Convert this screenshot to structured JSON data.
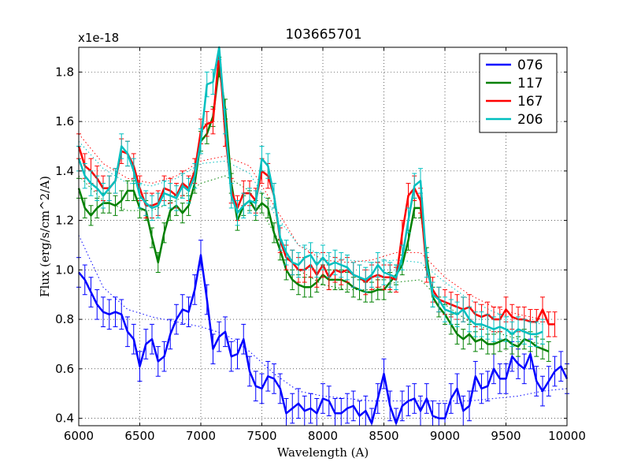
{
  "chart_data": {
    "type": "line",
    "title": "103665701",
    "xlabel": "Wavelength (A)",
    "ylabel": "Flux (erg/s/cm^2/A)",
    "y_multiplier": "x1e-18",
    "xlim": [
      6000,
      10000
    ],
    "ylim": [
      0.37,
      1.9
    ],
    "xticks": [
      6000,
      6500,
      7000,
      7500,
      8000,
      8500,
      9000,
      9500,
      10000
    ],
    "yticks": [
      0.4,
      0.6,
      0.8,
      1.0,
      1.2,
      1.4,
      1.6,
      1.8
    ],
    "ytick_labels": [
      "0.4",
      "0.6",
      "0.8",
      "1.0",
      "1.2",
      "1.4",
      "1.6",
      "1.8"
    ],
    "grid": true,
    "legend_position": "top-right",
    "series": [
      {
        "name": "076",
        "color": "#0000ff",
        "error": 0.06,
        "x": [
          6000,
          6050,
          6100,
          6150,
          6200,
          6250,
          6300,
          6350,
          6400,
          6450,
          6500,
          6550,
          6600,
          6650,
          6700,
          6750,
          6800,
          6850,
          6900,
          6950,
          7000,
          7050,
          7100,
          7150,
          7200,
          7250,
          7300,
          7350,
          7400,
          7450,
          7500,
          7550,
          7600,
          7650,
          7700,
          7750,
          7800,
          7850,
          7900,
          7950,
          8000,
          8050,
          8100,
          8150,
          8200,
          8250,
          8300,
          8350,
          8400,
          8450,
          8500,
          8550,
          8600,
          8650,
          8700,
          8750,
          8800,
          8850,
          8900,
          8950,
          9000,
          9050,
          9100,
          9150,
          9200,
          9250,
          9300,
          9350,
          9400,
          9450,
          9500,
          9550,
          9600,
          9650,
          9700,
          9750,
          9800,
          9850,
          9900,
          9950,
          10000
        ],
        "values": [
          0.99,
          0.96,
          0.91,
          0.86,
          0.83,
          0.82,
          0.83,
          0.82,
          0.75,
          0.72,
          0.61,
          0.7,
          0.72,
          0.63,
          0.65,
          0.74,
          0.8,
          0.84,
          0.83,
          0.92,
          1.06,
          0.88,
          0.68,
          0.73,
          0.75,
          0.65,
          0.66,
          0.72,
          0.59,
          0.53,
          0.52,
          0.57,
          0.56,
          0.52,
          0.42,
          0.44,
          0.46,
          0.43,
          0.44,
          0.42,
          0.48,
          0.47,
          0.42,
          0.42,
          0.44,
          0.45,
          0.41,
          0.43,
          0.38,
          0.48,
          0.58,
          0.45,
          0.38,
          0.45,
          0.47,
          0.48,
          0.43,
          0.48,
          0.41,
          0.4,
          0.4,
          0.48,
          0.52,
          0.43,
          0.45,
          0.57,
          0.52,
          0.53,
          0.6,
          0.56,
          0.56,
          0.65,
          0.62,
          0.6,
          0.66,
          0.55,
          0.51,
          0.55,
          0.59,
          0.61,
          0.56
        ]
      },
      {
        "name": "117",
        "color": "#008000",
        "error": 0.04,
        "x": [
          6000,
          6050,
          6100,
          6150,
          6200,
          6250,
          6300,
          6350,
          6400,
          6450,
          6500,
          6550,
          6600,
          6650,
          6700,
          6750,
          6800,
          6850,
          6900,
          6950,
          7000,
          7050,
          7100,
          7150,
          7200,
          7250,
          7300,
          7350,
          7400,
          7450,
          7500,
          7550,
          7600,
          7650,
          7700,
          7750,
          7800,
          7850,
          7900,
          7950,
          8000,
          8050,
          8100,
          8150,
          8200,
          8250,
          8300,
          8350,
          8400,
          8450,
          8500,
          8550,
          8600,
          8650,
          8700,
          8750,
          8800,
          8850,
          8900,
          8950,
          9000,
          9050,
          9100,
          9150,
          9200,
          9250,
          9300,
          9350,
          9400,
          9450,
          9500,
          9550,
          9600,
          9650,
          9700,
          9750,
          9800,
          9850
        ],
        "values": [
          1.33,
          1.25,
          1.22,
          1.25,
          1.27,
          1.27,
          1.26,
          1.28,
          1.32,
          1.32,
          1.25,
          1.24,
          1.13,
          1.03,
          1.15,
          1.24,
          1.26,
          1.23,
          1.26,
          1.35,
          1.52,
          1.55,
          1.62,
          1.82,
          1.65,
          1.35,
          1.2,
          1.26,
          1.28,
          1.24,
          1.27,
          1.25,
          1.15,
          1.08,
          1.0,
          0.96,
          0.94,
          0.93,
          0.93,
          0.95,
          0.98,
          0.96,
          0.96,
          0.96,
          0.95,
          0.93,
          0.92,
          0.91,
          0.91,
          0.92,
          0.92,
          0.95,
          0.98,
          1.02,
          1.12,
          1.25,
          1.25,
          1.05,
          0.89,
          0.85,
          0.82,
          0.78,
          0.74,
          0.72,
          0.74,
          0.71,
          0.72,
          0.7,
          0.7,
          0.71,
          0.72,
          0.7,
          0.69,
          0.72,
          0.71,
          0.69,
          0.68,
          0.67
        ]
      },
      {
        "name": "167",
        "color": "#ff0000",
        "error": 0.05,
        "x": [
          6000,
          6050,
          6100,
          6150,
          6200,
          6250,
          6300,
          6350,
          6400,
          6450,
          6500,
          6550,
          6600,
          6650,
          6700,
          6750,
          6800,
          6850,
          6900,
          6950,
          7000,
          7050,
          7100,
          7150,
          7200,
          7250,
          7300,
          7350,
          7400,
          7450,
          7500,
          7550,
          7600,
          7650,
          7700,
          7750,
          7800,
          7850,
          7900,
          7950,
          8000,
          8050,
          8100,
          8150,
          8200,
          8250,
          8300,
          8350,
          8400,
          8450,
          8500,
          8550,
          8600,
          8650,
          8700,
          8750,
          8800,
          8850,
          8900,
          8950,
          9000,
          9050,
          9100,
          9150,
          9200,
          9250,
          9300,
          9350,
          9400,
          9450,
          9500,
          9550,
          9600,
          9650,
          9700,
          9750,
          9800,
          9850,
          9900
        ],
        "values": [
          1.5,
          1.42,
          1.4,
          1.37,
          1.33,
          1.33,
          1.36,
          1.48,
          1.47,
          1.42,
          1.33,
          1.26,
          1.26,
          1.27,
          1.33,
          1.32,
          1.3,
          1.35,
          1.33,
          1.4,
          1.56,
          1.59,
          1.6,
          1.88,
          1.55,
          1.32,
          1.25,
          1.31,
          1.31,
          1.28,
          1.4,
          1.38,
          1.3,
          1.12,
          1.05,
          1.03,
          1.0,
          1.0,
          1.02,
          0.98,
          1.02,
          0.97,
          1.0,
          0.99,
          1.0,
          0.98,
          0.97,
          0.95,
          0.97,
          0.98,
          0.97,
          0.97,
          0.96,
          1.15,
          1.3,
          1.33,
          1.28,
          1.0,
          0.92,
          0.88,
          0.87,
          0.86,
          0.85,
          0.84,
          0.85,
          0.82,
          0.81,
          0.82,
          0.8,
          0.8,
          0.84,
          0.81,
          0.8,
          0.8,
          0.79,
          0.79,
          0.84,
          0.78,
          0.78
        ]
      },
      {
        "name": "206",
        "color": "#00bfbf",
        "error": 0.05,
        "x": [
          6000,
          6050,
          6100,
          6150,
          6200,
          6250,
          6300,
          6350,
          6400,
          6450,
          6500,
          6550,
          6600,
          6650,
          6700,
          6750,
          6800,
          6850,
          6900,
          6950,
          7000,
          7050,
          7100,
          7150,
          7200,
          7250,
          7300,
          7350,
          7400,
          7450,
          7500,
          7550,
          7600,
          7650,
          7700,
          7750,
          7800,
          7850,
          7900,
          7950,
          8000,
          8050,
          8100,
          8150,
          8200,
          8250,
          8300,
          8350,
          8400,
          8450,
          8500,
          8550,
          8600,
          8650,
          8700,
          8750,
          8800,
          8850,
          8900,
          8950,
          9000,
          9050,
          9100,
          9150,
          9200,
          9250,
          9300,
          9350,
          9400,
          9450,
          9500,
          9550,
          9600,
          9650,
          9700,
          9750,
          9800
        ],
        "values": [
          1.45,
          1.38,
          1.35,
          1.33,
          1.3,
          1.33,
          1.36,
          1.5,
          1.47,
          1.4,
          1.3,
          1.27,
          1.25,
          1.26,
          1.31,
          1.3,
          1.29,
          1.34,
          1.32,
          1.38,
          1.52,
          1.75,
          1.76,
          1.9,
          1.6,
          1.3,
          1.23,
          1.26,
          1.28,
          1.27,
          1.45,
          1.42,
          1.3,
          1.13,
          1.07,
          1.03,
          1.02,
          1.05,
          1.06,
          1.02,
          1.05,
          1.02,
          1.03,
          1.02,
          1.01,
          0.98,
          0.97,
          0.96,
          0.98,
          1.02,
          0.99,
          0.98,
          0.97,
          1.05,
          1.2,
          1.34,
          1.36,
          1.02,
          0.9,
          0.88,
          0.84,
          0.83,
          0.82,
          0.84,
          0.8,
          0.78,
          0.78,
          0.77,
          0.76,
          0.77,
          0.76,
          0.74,
          0.76,
          0.75,
          0.74,
          0.74,
          0.75
        ]
      }
    ],
    "fits": [
      {
        "name": "076 fit",
        "color": "#0000ff",
        "x": [
          6000,
          6200,
          6400,
          6600,
          6800,
          7000,
          7200,
          7400,
          7600,
          7800,
          8000,
          8200,
          8400,
          8600,
          8800,
          9000,
          9200,
          9400,
          9600,
          9800,
          10000
        ],
        "values": [
          1.14,
          0.93,
          0.84,
          0.81,
          0.79,
          0.77,
          0.74,
          0.67,
          0.58,
          0.51,
          0.49,
          0.48,
          0.47,
          0.47,
          0.47,
          0.47,
          0.47,
          0.48,
          0.49,
          0.51,
          0.52
        ]
      },
      {
        "name": "117 fit",
        "color": "#008000",
        "x": [
          6000,
          6200,
          6400,
          6600,
          6800,
          7000,
          7200,
          7400,
          7600,
          7800,
          8000,
          8200,
          8400,
          8600,
          8800,
          9000,
          9200,
          9400,
          9600,
          9800
        ],
        "values": [
          1.38,
          1.28,
          1.24,
          1.24,
          1.28,
          1.35,
          1.38,
          1.32,
          1.15,
          1.0,
          0.94,
          0.92,
          0.92,
          0.95,
          0.96,
          0.86,
          0.79,
          0.75,
          0.72,
          0.7
        ]
      },
      {
        "name": "167 fit",
        "color": "#ff0000",
        "x": [
          6000,
          6200,
          6400,
          6600,
          6800,
          7000,
          7200,
          7400,
          7600,
          7800,
          8000,
          8200,
          8400,
          8600,
          8800,
          9000,
          9200,
          9400,
          9600,
          9800
        ],
        "values": [
          1.55,
          1.43,
          1.37,
          1.35,
          1.38,
          1.44,
          1.46,
          1.42,
          1.26,
          1.1,
          1.04,
          1.03,
          1.04,
          1.07,
          1.07,
          0.97,
          0.9,
          0.85,
          0.82,
          0.8
        ]
      },
      {
        "name": "206 fit",
        "color": "#00bfbf",
        "x": [
          6000,
          6200,
          6400,
          6600,
          6800,
          7000,
          7200,
          7400,
          7600,
          7800,
          8000,
          8200,
          8400,
          8600,
          8800,
          9000,
          9200,
          9400,
          9600,
          9800
        ],
        "values": [
          1.52,
          1.41,
          1.35,
          1.34,
          1.37,
          1.43,
          1.44,
          1.39,
          1.23,
          1.1,
          1.06,
          1.04,
          1.03,
          1.04,
          1.03,
          0.95,
          0.88,
          0.83,
          0.8,
          0.78
        ]
      }
    ]
  }
}
